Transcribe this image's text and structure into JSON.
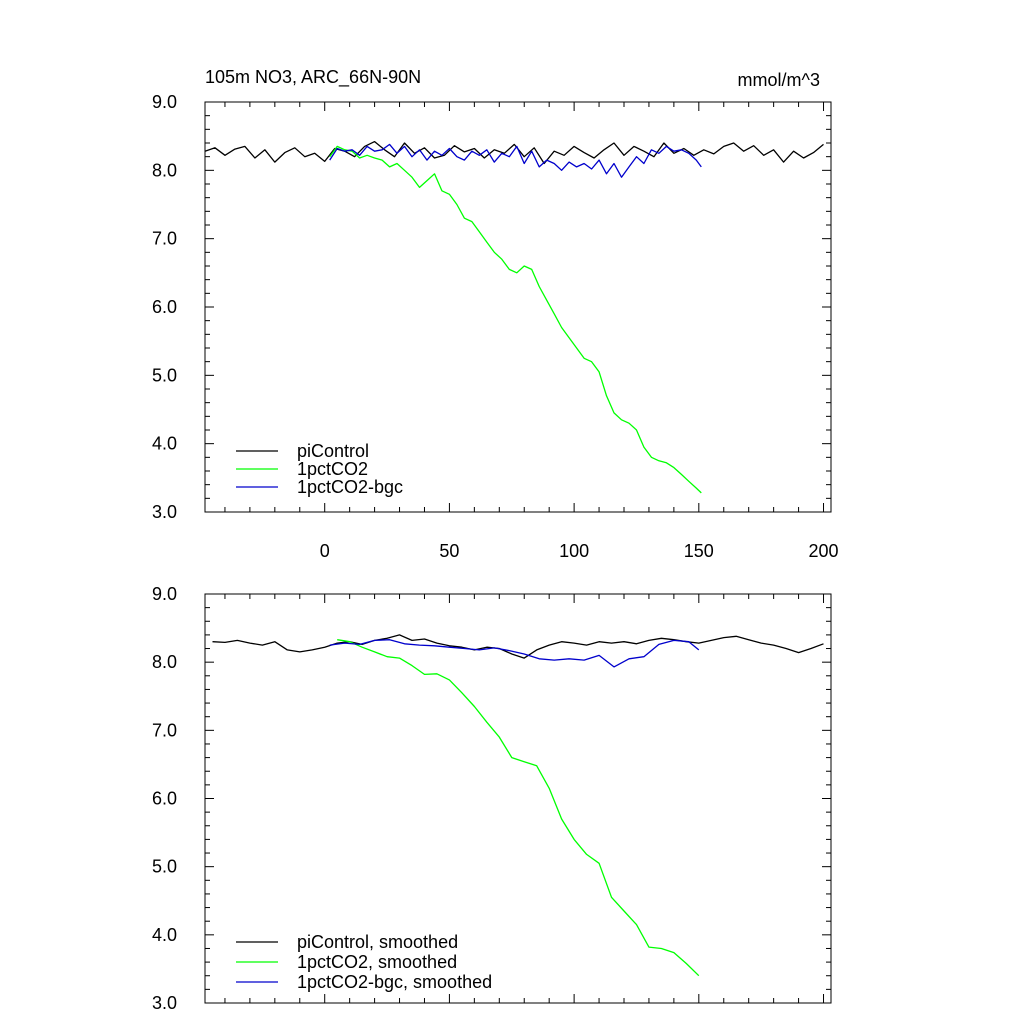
{
  "header": {
    "title": "105m NO3, ARC_66N-90N",
    "units": "mmol/m^3"
  },
  "chart_data": [
    {
      "type": "line",
      "title": "105m NO3, ARC_66N-90N",
      "ylabel": "mmol/m^3",
      "xlim": [
        -48,
        203
      ],
      "ylim": [
        3.0,
        9.0
      ],
      "x_ticks": [
        0,
        50,
        100,
        150,
        200
      ],
      "x_tick_labels": [
        "0",
        "50",
        "100",
        "150",
        "200"
      ],
      "y_ticks": [
        3.0,
        4.0,
        5.0,
        6.0,
        7.0,
        8.0,
        9.0
      ],
      "y_tick_labels": [
        "3.0",
        "4.0",
        "5.0",
        "6.0",
        "7.0",
        "8.0",
        "9.0"
      ],
      "legend_position": "bottom-left",
      "grid": false,
      "series": [
        {
          "name": "piControl",
          "color": "#000000",
          "x": [
            -48,
            -44,
            -40,
            -36,
            -32,
            -28,
            -24,
            -20,
            -16,
            -12,
            -8,
            -4,
            0,
            4,
            8,
            12,
            16,
            20,
            24,
            28,
            32,
            36,
            40,
            44,
            48,
            52,
            56,
            60,
            64,
            68,
            72,
            76,
            80,
            84,
            88,
            92,
            96,
            100,
            104,
            108,
            112,
            116,
            120,
            124,
            128,
            132,
            136,
            140,
            144,
            148,
            152,
            156,
            160,
            164,
            168,
            172,
            176,
            180,
            184,
            188,
            192,
            196,
            200
          ],
          "values": [
            8.28,
            8.33,
            8.22,
            8.31,
            8.35,
            8.18,
            8.3,
            8.12,
            8.26,
            8.33,
            8.2,
            8.25,
            8.13,
            8.32,
            8.28,
            8.2,
            8.35,
            8.42,
            8.3,
            8.2,
            8.4,
            8.25,
            8.33,
            8.18,
            8.22,
            8.36,
            8.27,
            8.32,
            8.18,
            8.3,
            8.25,
            8.38,
            8.2,
            8.33,
            8.1,
            8.28,
            8.22,
            8.35,
            8.26,
            8.18,
            8.3,
            8.4,
            8.22,
            8.35,
            8.28,
            8.2,
            8.4,
            8.25,
            8.32,
            8.22,
            8.3,
            8.24,
            8.35,
            8.4,
            8.28,
            8.36,
            8.22,
            8.3,
            8.12,
            8.28,
            8.18,
            8.26,
            8.38
          ]
        },
        {
          "name": "1pctCO2",
          "color": "#00ff00",
          "x": [
            2,
            5,
            8,
            11,
            14,
            17,
            20,
            23,
            26,
            29,
            32,
            35,
            38,
            41,
            44,
            47,
            50,
            53,
            56,
            59,
            62,
            65,
            68,
            71,
            74,
            77,
            80,
            83,
            86,
            89,
            92,
            95,
            98,
            101,
            104,
            107,
            110,
            113,
            116,
            119,
            122,
            125,
            128,
            131,
            134,
            137,
            140,
            143,
            146,
            149,
            151
          ],
          "values": [
            8.2,
            8.35,
            8.3,
            8.28,
            8.18,
            8.22,
            8.18,
            8.15,
            8.05,
            8.1,
            8.0,
            7.9,
            7.75,
            7.85,
            7.95,
            7.7,
            7.65,
            7.5,
            7.3,
            7.25,
            7.1,
            6.95,
            6.8,
            6.7,
            6.55,
            6.5,
            6.6,
            6.55,
            6.3,
            6.1,
            5.9,
            5.7,
            5.55,
            5.4,
            5.25,
            5.2,
            5.05,
            4.7,
            4.45,
            4.35,
            4.3,
            4.2,
            3.95,
            3.8,
            3.75,
            3.72,
            3.65,
            3.55,
            3.45,
            3.35,
            3.28
          ]
        },
        {
          "name": "1pctCO2-bgc",
          "color": "#0000cc",
          "x": [
            2,
            5,
            8,
            11,
            14,
            17,
            20,
            23,
            26,
            29,
            32,
            35,
            38,
            41,
            44,
            47,
            50,
            53,
            56,
            59,
            62,
            65,
            68,
            71,
            74,
            77,
            80,
            83,
            86,
            89,
            92,
            95,
            98,
            101,
            104,
            107,
            110,
            113,
            116,
            119,
            122,
            125,
            128,
            131,
            134,
            137,
            140,
            143,
            146,
            149,
            151
          ],
          "values": [
            8.15,
            8.32,
            8.28,
            8.3,
            8.22,
            8.35,
            8.28,
            8.3,
            8.38,
            8.25,
            8.35,
            8.2,
            8.3,
            8.15,
            8.28,
            8.22,
            8.32,
            8.2,
            8.15,
            8.28,
            8.22,
            8.3,
            8.12,
            8.25,
            8.2,
            8.35,
            8.1,
            8.28,
            8.05,
            8.15,
            8.1,
            8.0,
            8.12,
            8.05,
            8.1,
            8.02,
            8.15,
            7.95,
            8.1,
            7.9,
            8.05,
            8.2,
            8.1,
            8.3,
            8.25,
            8.35,
            8.28,
            8.3,
            8.25,
            8.15,
            8.05
          ]
        }
      ]
    },
    {
      "type": "line",
      "xlim": [
        -48,
        203
      ],
      "ylim": [
        3.0,
        9.0
      ],
      "x_ticks": [
        0,
        50,
        100,
        150,
        200
      ],
      "y_ticks": [
        3.0,
        4.0,
        5.0,
        6.0,
        7.0,
        8.0,
        9.0
      ],
      "y_tick_labels": [
        "3.0",
        "4.0",
        "5.0",
        "6.0",
        "7.0",
        "8.0",
        "9.0"
      ],
      "legend_position": "bottom-left",
      "grid": false,
      "series": [
        {
          "name": "piControl, smoothed",
          "color": "#000000",
          "x": [
            -45,
            -40,
            -35,
            -30,
            -25,
            -20,
            -15,
            -10,
            -5,
            0,
            5,
            10,
            15,
            20,
            25,
            30,
            35,
            40,
            45,
            50,
            55,
            60,
            65,
            70,
            75,
            80,
            85,
            90,
            95,
            100,
            105,
            110,
            115,
            120,
            125,
            130,
            135,
            140,
            145,
            150,
            155,
            160,
            165,
            170,
            175,
            180,
            185,
            190,
            195,
            200
          ],
          "values": [
            8.3,
            8.29,
            8.32,
            8.28,
            8.25,
            8.3,
            8.18,
            8.15,
            8.18,
            8.22,
            8.28,
            8.3,
            8.26,
            8.32,
            8.35,
            8.4,
            8.32,
            8.34,
            8.28,
            8.24,
            8.22,
            8.18,
            8.22,
            8.2,
            8.12,
            8.06,
            8.18,
            8.25,
            8.3,
            8.28,
            8.25,
            8.3,
            8.28,
            8.3,
            8.27,
            8.32,
            8.35,
            8.33,
            8.3,
            8.28,
            8.32,
            8.36,
            8.38,
            8.33,
            8.28,
            8.25,
            8.2,
            8.14,
            8.2,
            8.27
          ]
        },
        {
          "name": "1pctCO2, smoothed",
          "color": "#00ff00",
          "x": [
            5,
            10,
            15,
            20,
            25,
            30,
            35,
            40,
            45,
            50,
            55,
            60,
            65,
            70,
            75,
            80,
            85,
            90,
            95,
            100,
            105,
            110,
            115,
            120,
            125,
            130,
            135,
            140,
            145,
            150
          ],
          "values": [
            8.33,
            8.3,
            8.22,
            8.15,
            8.08,
            8.06,
            7.95,
            7.82,
            7.83,
            7.74,
            7.55,
            7.35,
            7.12,
            6.9,
            6.6,
            6.54,
            6.48,
            6.15,
            5.7,
            5.4,
            5.18,
            5.05,
            4.55,
            4.35,
            4.15,
            3.82,
            3.8,
            3.74,
            3.58,
            3.4
          ]
        },
        {
          "name": "1pctCO2-bgc, smoothed",
          "color": "#0000cc",
          "x": [
            2,
            8,
            14,
            20,
            26,
            32,
            38,
            44,
            50,
            56,
            62,
            68,
            74,
            80,
            86,
            92,
            98,
            104,
            110,
            116,
            122,
            128,
            134,
            140,
            146,
            150
          ],
          "values": [
            8.25,
            8.28,
            8.26,
            8.32,
            8.33,
            8.27,
            8.25,
            8.24,
            8.22,
            8.2,
            8.18,
            8.21,
            8.17,
            8.12,
            8.05,
            8.03,
            8.05,
            8.03,
            8.1,
            7.93,
            8.05,
            8.08,
            8.26,
            8.32,
            8.3,
            8.18
          ]
        }
      ]
    }
  ]
}
